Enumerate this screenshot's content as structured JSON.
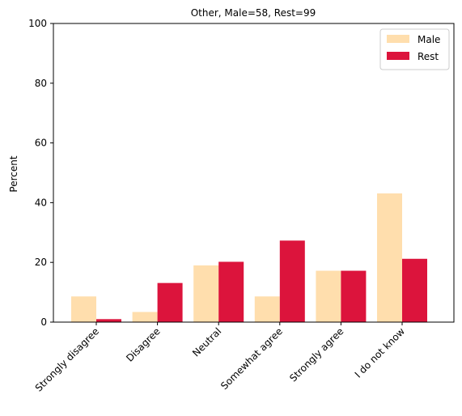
{
  "chart_data": {
    "type": "bar",
    "title": "Other, Male=58, Rest=99",
    "xlabel": "",
    "ylabel": "Percent",
    "ylim": [
      0,
      100
    ],
    "yticks": [
      0,
      20,
      40,
      60,
      80,
      100
    ],
    "categories": [
      "Strongly disagree",
      "Disagree",
      "Neutral",
      "Somewhat agree",
      "Strongly agree",
      "I do not know"
    ],
    "series": [
      {
        "name": "Male",
        "color": "#FFDEAD",
        "values": [
          8.6,
          3.4,
          19.0,
          8.6,
          17.2,
          43.1
        ]
      },
      {
        "name": "Rest",
        "color": "#DC143C",
        "values": [
          1.0,
          13.1,
          20.2,
          27.3,
          17.2,
          21.2
        ]
      }
    ],
    "legend": "top-right",
    "grid": false
  }
}
